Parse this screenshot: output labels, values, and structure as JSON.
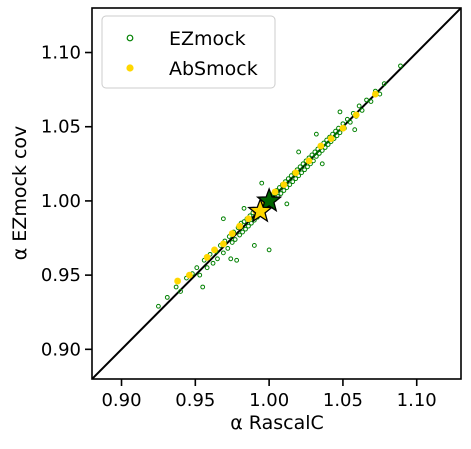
{
  "chart_data": {
    "type": "scatter",
    "xlabel": "α RascalC",
    "ylabel": "α EZmock cov",
    "xlim": [
      0.88,
      1.13
    ],
    "ylim": [
      0.88,
      1.13
    ],
    "xticks": [
      0.9,
      0.95,
      1.0,
      1.05,
      1.1
    ],
    "yticks": [
      0.9,
      0.95,
      1.0,
      1.05,
      1.1
    ],
    "tick_labels": [
      "0.90",
      "0.95",
      "1.00",
      "1.05",
      "1.10"
    ],
    "grid": false,
    "legend": {
      "placement": "top-left",
      "entries": [
        "EZmock",
        "AbSmock"
      ]
    },
    "reference_line": {
      "label": "",
      "from": [
        0.88,
        0.88
      ],
      "to": [
        1.13,
        1.13
      ],
      "color": "#000000"
    },
    "series": [
      {
        "name": "EZmock",
        "marker": "open-circle",
        "color": "#008000",
        "points": [
          [
            0.925,
            0.929
          ],
          [
            0.931,
            0.935
          ],
          [
            0.937,
            0.942
          ],
          [
            0.94,
            0.939
          ],
          [
            0.944,
            0.948
          ],
          [
            0.948,
            0.951
          ],
          [
            0.951,
            0.955
          ],
          [
            0.953,
            0.95
          ],
          [
            0.956,
            0.96
          ],
          [
            0.958,
            0.955
          ],
          [
            0.96,
            0.964
          ],
          [
            0.962,
            0.958
          ],
          [
            0.964,
            0.966
          ],
          [
            0.965,
            0.961
          ],
          [
            0.967,
            0.97
          ],
          [
            0.969,
            0.965
          ],
          [
            0.97,
            0.973
          ],
          [
            0.972,
            0.968
          ],
          [
            0.973,
            0.976
          ],
          [
            0.975,
            0.972
          ],
          [
            0.976,
            0.979
          ],
          [
            0.977,
            0.974
          ],
          [
            0.979,
            0.982
          ],
          [
            0.98,
            0.977
          ],
          [
            0.981,
            0.985
          ],
          [
            0.982,
            0.979
          ],
          [
            0.983,
            0.986
          ],
          [
            0.984,
            0.981
          ],
          [
            0.985,
            0.988
          ],
          [
            0.986,
            0.983
          ],
          [
            0.987,
            0.99
          ],
          [
            0.988,
            0.985
          ],
          [
            0.989,
            0.992
          ],
          [
            0.99,
            0.987
          ],
          [
            0.991,
            0.993
          ],
          [
            0.992,
            0.989
          ],
          [
            0.993,
            0.995
          ],
          [
            0.994,
            0.991
          ],
          [
            0.995,
            0.997
          ],
          [
            0.996,
            0.993
          ],
          [
            0.997,
            0.999
          ],
          [
            0.998,
            0.995
          ],
          [
            0.999,
            1.001
          ],
          [
            1.0,
            0.997
          ],
          [
            1.001,
            1.003
          ],
          [
            1.002,
            0.999
          ],
          [
            1.003,
            1.005
          ],
          [
            1.004,
            1.001
          ],
          [
            1.005,
            1.007
          ],
          [
            1.006,
            1.003
          ],
          [
            1.007,
            1.009
          ],
          [
            1.008,
            1.005
          ],
          [
            1.009,
            1.011
          ],
          [
            1.01,
            1.007
          ],
          [
            1.011,
            1.013
          ],
          [
            1.012,
            1.009
          ],
          [
            1.013,
            1.015
          ],
          [
            1.014,
            1.011
          ],
          [
            1.015,
            1.017
          ],
          [
            1.016,
            1.013
          ],
          [
            1.017,
            1.019
          ],
          [
            1.018,
            1.015
          ],
          [
            1.019,
            1.021
          ],
          [
            1.02,
            1.017
          ],
          [
            1.021,
            1.023
          ],
          [
            1.022,
            1.019
          ],
          [
            1.023,
            1.025
          ],
          [
            1.024,
            1.021
          ],
          [
            1.025,
            1.027
          ],
          [
            1.026,
            1.023
          ],
          [
            1.027,
            1.029
          ],
          [
            1.028,
            1.025
          ],
          [
            1.029,
            1.031
          ],
          [
            1.03,
            1.027
          ],
          [
            1.031,
            1.033
          ],
          [
            1.032,
            1.03
          ],
          [
            1.033,
            1.035
          ],
          [
            1.034,
            1.032
          ],
          [
            1.035,
            1.037
          ],
          [
            1.036,
            1.034
          ],
          [
            1.037,
            1.039
          ],
          [
            1.038,
            1.036
          ],
          [
            1.039,
            1.041
          ],
          [
            1.04,
            1.038
          ],
          [
            1.041,
            1.043
          ],
          [
            1.042,
            1.04
          ],
          [
            1.043,
            1.045
          ],
          [
            1.044,
            1.042
          ],
          [
            1.045,
            1.047
          ],
          [
            1.046,
            1.044
          ],
          [
            1.047,
            1.049
          ],
          [
            1.048,
            1.046
          ],
          [
            1.05,
            1.052
          ],
          [
            1.051,
            1.049
          ],
          [
            1.053,
            1.055
          ],
          [
            1.055,
            1.053
          ],
          [
            1.057,
            1.059
          ],
          [
            1.059,
            1.057
          ],
          [
            1.061,
            1.064
          ],
          [
            1.063,
            1.061
          ],
          [
            1.066,
            1.068
          ],
          [
            1.069,
            1.067
          ],
          [
            1.072,
            1.074
          ],
          [
            1.075,
            1.072
          ],
          [
            1.078,
            1.079
          ],
          [
            1.089,
            1.091
          ],
          [
            0.978,
            0.96
          ],
          [
            0.99,
            0.97
          ],
          [
            1.0,
            0.967
          ],
          [
            0.969,
            0.988
          ],
          [
            0.983,
            0.995
          ],
          [
            1.012,
            0.998
          ],
          [
            1.02,
            1.033
          ],
          [
            1.032,
            1.045
          ],
          [
            1.048,
            1.06
          ],
          [
            1.058,
            1.048
          ],
          [
            1.036,
            1.025
          ],
          [
            0.955,
            0.942
          ],
          [
            0.974,
            0.961
          ],
          [
            0.995,
            1.012
          ]
        ]
      },
      {
        "name": "AbSmock",
        "marker": "filled-circle",
        "color": "#ffd700",
        "points": [
          [
            0.938,
            0.946
          ],
          [
            0.946,
            0.95
          ],
          [
            0.958,
            0.962
          ],
          [
            0.963,
            0.967
          ],
          [
            0.969,
            0.971
          ],
          [
            0.975,
            0.978
          ],
          [
            0.98,
            0.983
          ],
          [
            0.986,
            0.988
          ],
          [
            0.991,
            0.993
          ],
          [
            0.997,
            0.998
          ],
          [
            1.004,
            1.006
          ],
          [
            1.01,
            1.011
          ],
          [
            1.018,
            1.019
          ],
          [
            1.027,
            1.027
          ],
          [
            1.035,
            1.037
          ],
          [
            1.042,
            1.042
          ],
          [
            1.05,
            1.049
          ],
          [
            1.059,
            1.058
          ],
          [
            1.072,
            1.072
          ]
        ]
      }
    ],
    "highlights": [
      {
        "series": "EZmock",
        "marker": "star",
        "color": "#006400",
        "point": [
          1.0,
          1.0
        ]
      },
      {
        "series": "AbSmock",
        "marker": "star",
        "color": "#ffd700",
        "point": [
          0.994,
          0.993
        ]
      }
    ]
  }
}
